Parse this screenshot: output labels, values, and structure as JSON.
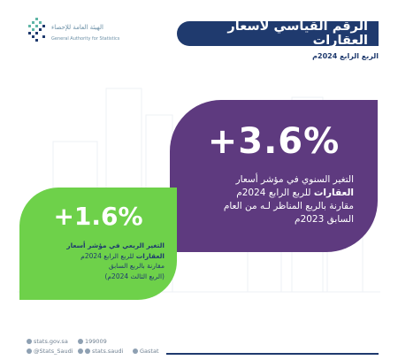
{
  "header": {
    "title": "الرقم القياسي لأسعار العقارات",
    "subtitle": "الربع الرابع 2024م"
  },
  "logo": {
    "name_ar": "الهيئة العامة للإحصاء",
    "name_en": "General Authority for Statistics"
  },
  "annual_change": {
    "value": "+3.6%",
    "line1": "التغير السنوي في مؤشر أسعار",
    "line2_bold": "العقارات",
    "line2_rest": " للربع الرابع 2024م",
    "line3": "مقارنة بالربع المناظر لـه من العام",
    "line4": "السابق 2023م"
  },
  "quarterly_change": {
    "value": "+1.6%",
    "line1": "التغير الربعي في مؤشر أسعار",
    "line2_bold": "العقارات",
    "line2_rest": " للربع الرابع 2024م",
    "line3": "مقارنة بالربع السابق",
    "line4": "(الربع الثالث 2024م)"
  },
  "footer": {
    "website": "stats.gov.sa",
    "phone": "199009",
    "twitter": "@Stats_Saudi",
    "social": "stats.saudi",
    "app": "Gastat"
  },
  "colors": {
    "navy": "#1f3a6e",
    "purple": "#5e3a7f",
    "green": "#6ed14a"
  }
}
